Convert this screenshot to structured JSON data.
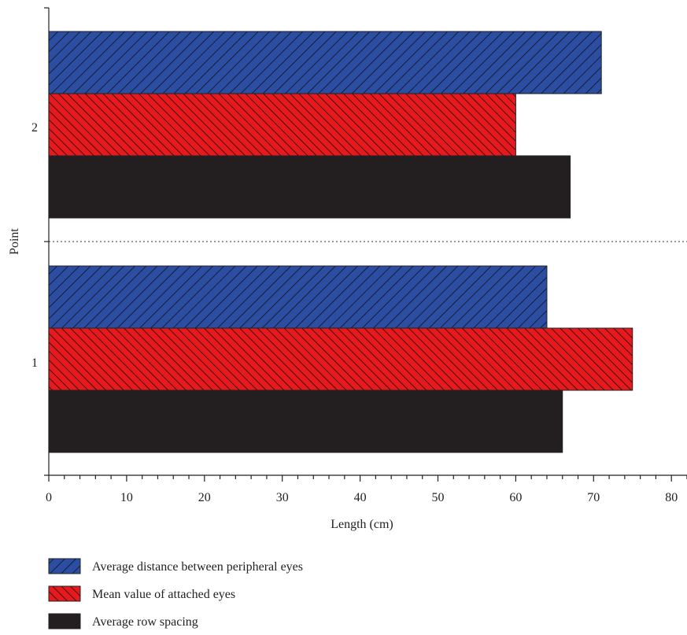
{
  "chart_data": {
    "type": "bar",
    "orientation": "horizontal",
    "categories": [
      "1",
      "2"
    ],
    "series": [
      {
        "name": "Average distance between peripheral eyes",
        "values": [
          64,
          71
        ],
        "color": "#2b4ea2",
        "pattern": "hatch-forward"
      },
      {
        "name": "Mean value of attached eyes",
        "values": [
          75,
          60
        ],
        "color": "#e8191c",
        "pattern": "hatch-backward"
      },
      {
        "name": "Average row spacing",
        "values": [
          66,
          67
        ],
        "color": "#231f20",
        "pattern": "solid"
      }
    ],
    "xlabel": "Length (cm)",
    "ylabel": "Point",
    "xlim": [
      0,
      82
    ],
    "xticks": [
      0,
      10,
      20,
      30,
      40,
      50,
      60,
      70,
      80
    ],
    "legend_position": "bottom",
    "grid": false,
    "category_separator": "dotted"
  }
}
